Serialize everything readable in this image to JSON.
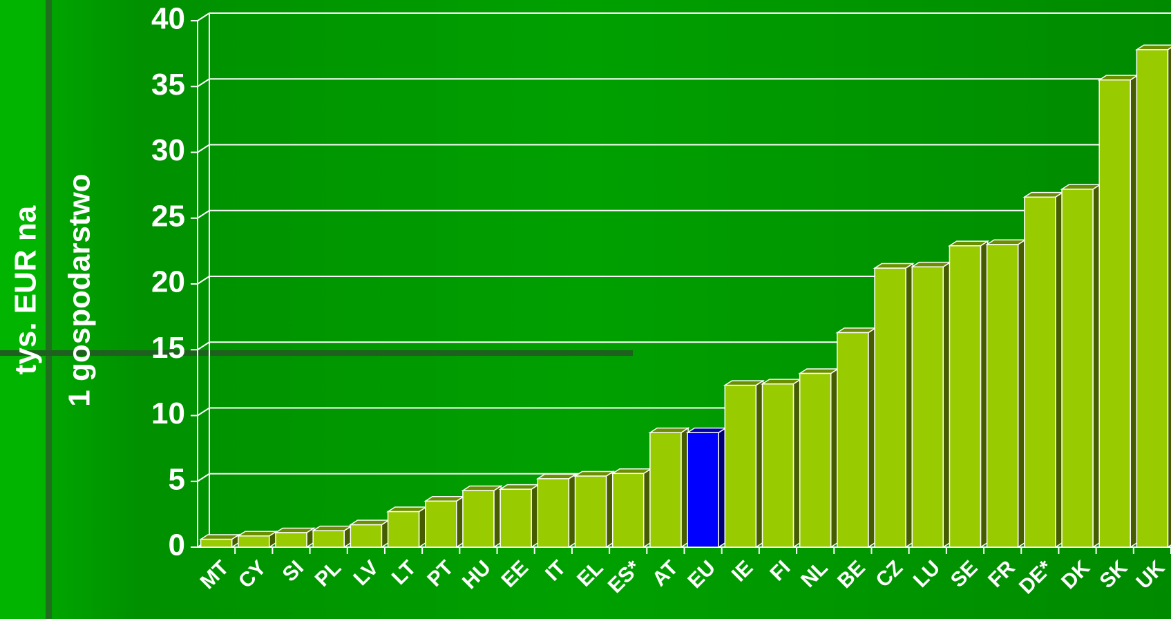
{
  "chart_data": {
    "type": "bar",
    "ylabel": [
      "tys. EUR na",
      "1 gospodarstwo"
    ],
    "categories": [
      "MT",
      "CY",
      "SI",
      "PL",
      "LV",
      "LT",
      "PT",
      "HU",
      "EE",
      "IT",
      "EL",
      "ES*",
      "AT",
      "EU",
      "IE",
      "FI",
      "NL",
      "BE",
      "CZ",
      "LU",
      "SE",
      "FR",
      "DE*",
      "DK",
      "SK",
      "UK"
    ],
    "values": [
      0.6,
      0.85,
      1.1,
      1.25,
      1.7,
      2.7,
      3.5,
      4.3,
      4.4,
      5.2,
      5.4,
      5.6,
      8.7,
      8.7,
      12.3,
      12.4,
      13.2,
      16.3,
      21.2,
      21.3,
      22.9,
      23.0,
      26.6,
      27.2,
      35.5,
      37.8
    ],
    "colors": [
      "#99cc00",
      "#99cc00",
      "#99cc00",
      "#99cc00",
      "#99cc00",
      "#99cc00",
      "#99cc00",
      "#99cc00",
      "#99cc00",
      "#99cc00",
      "#99cc00",
      "#99cc00",
      "#99cc00",
      "#0000ff",
      "#99cc00",
      "#99cc00",
      "#99cc00",
      "#99cc00",
      "#99cc00",
      "#99cc00",
      "#99cc00",
      "#99cc00",
      "#99cc00",
      "#99cc00",
      "#99cc00",
      "#99cc00"
    ],
    "ylim": [
      0,
      40
    ],
    "yticks": [
      0,
      5,
      10,
      15,
      20,
      25,
      30,
      35,
      40
    ],
    "grid": true
  }
}
